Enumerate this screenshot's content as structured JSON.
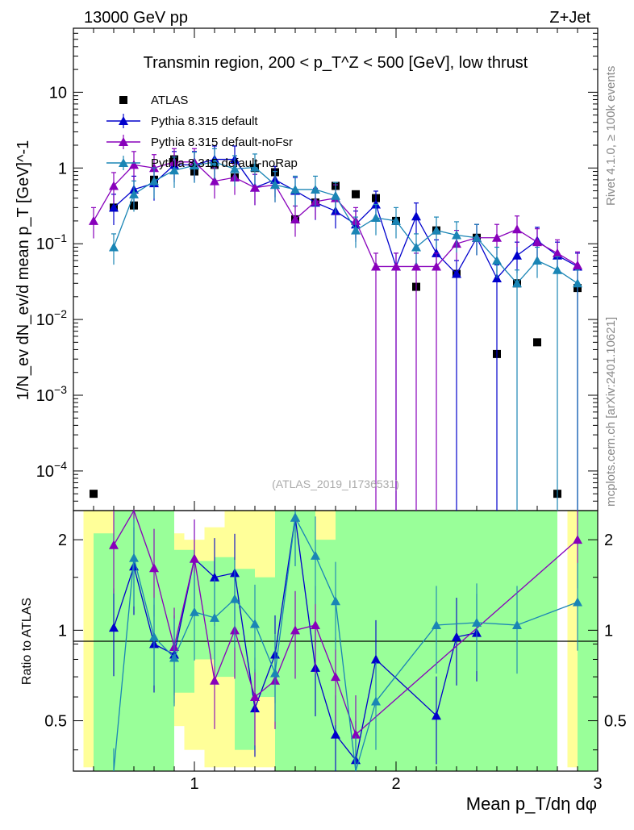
{
  "header": {
    "left": "13000 GeV pp",
    "right": "Z+Jet"
  },
  "side": {
    "rivet": "Rivet 4.1.0, ≥ 100k events",
    "mcplots": "mcplots.cern.ch [arXiv:2401.10621]"
  },
  "chart_data": {
    "type": "scatter",
    "title": "Transmin region, 200 < p_T^Z < 500 [GeV], low thrust",
    "xlabel": "Mean p_T/dη dφ",
    "ylabel": "1/N_ev dN_ev/d mean p_T [GeV]^-1",
    "ratio_ylabel": "Ratio to ATLAS",
    "watermark": "(ATLAS_2019_I1736531)",
    "xlim": [
      0.4,
      3.0
    ],
    "ylim": [
      3e-05,
      70
    ],
    "yscale": "log",
    "ratio_ylim": [
      0.34,
      2.5
    ],
    "x_ticks": [
      "1",
      "2",
      "3"
    ],
    "y_ticks": [
      "10^-4",
      "10^-3",
      "10^-2",
      "10^-1",
      "1",
      "10"
    ],
    "ratio_ticks": [
      "0.5",
      "1",
      "2"
    ],
    "legend_position": "top-left",
    "series": [
      {
        "name": "ATLAS",
        "color": "#000000",
        "marker": "square",
        "x": [
          0.5,
          0.6,
          0.7,
          0.8,
          0.9,
          1.0,
          1.1,
          1.2,
          1.3,
          1.4,
          1.5,
          1.6,
          1.7,
          1.8,
          1.9,
          2.0,
          2.1,
          2.2,
          2.3,
          2.4,
          2.5,
          2.6,
          2.7,
          2.8,
          2.9
        ],
        "y": [
          5e-05,
          0.3,
          0.32,
          0.7,
          1.3,
          0.9,
          1.1,
          0.75,
          1.0,
          0.88,
          0.21,
          0.35,
          0.58,
          0.45,
          0.4,
          0.2,
          0.027,
          0.15,
          0.04,
          0.12,
          0.0035,
          0.03,
          0.005,
          5e-05,
          0.026
        ]
      },
      {
        "name": "Pythia 8.315 default",
        "color": "#0000cc",
        "marker": "triangle",
        "x": [
          0.6,
          0.7,
          0.8,
          0.9,
          1.0,
          1.1,
          1.2,
          1.3,
          1.4,
          1.5,
          1.6,
          1.7,
          1.8,
          1.9,
          2.0,
          2.1,
          2.2,
          2.3,
          2.4,
          2.5,
          2.6,
          2.7,
          2.8,
          2.9
        ],
        "y": [
          0.3,
          0.52,
          0.63,
          1.1,
          1.1,
          1.3,
          1.3,
          0.55,
          0.7,
          0.5,
          0.35,
          0.27,
          0.18,
          0.33,
          0.05,
          0.23,
          0.075,
          0.04,
          0.12,
          0.035,
          0.07,
          0.11,
          0.07,
          0.05
        ]
      },
      {
        "name": "Pythia 8.315 default-noFsr",
        "color": "#8800bb",
        "marker": "triangle",
        "x": [
          0.5,
          0.6,
          0.7,
          0.8,
          0.9,
          1.0,
          1.1,
          1.2,
          1.3,
          1.4,
          1.5,
          1.6,
          1.7,
          1.8,
          1.9,
          2.0,
          2.1,
          2.2,
          2.3,
          2.4,
          2.5,
          2.6,
          2.7,
          2.8,
          2.9
        ],
        "y": [
          0.2,
          0.58,
          1.1,
          1.0,
          1.2,
          1.2,
          0.67,
          0.75,
          0.55,
          0.6,
          0.21,
          0.36,
          0.4,
          0.2,
          0.05,
          0.05,
          0.05,
          0.05,
          0.1,
          0.12,
          0.12,
          0.155,
          0.105,
          0.075,
          0.052
        ]
      },
      {
        "name": "Pythia 8.315 default-noRap",
        "color": "#1a85b5",
        "marker": "triangle",
        "x": [
          0.6,
          0.7,
          0.8,
          0.9,
          1.0,
          1.1,
          1.2,
          1.3,
          1.4,
          1.5,
          1.6,
          1.7,
          1.8,
          1.9,
          2.0,
          2.1,
          2.2,
          2.3,
          2.4,
          2.5,
          2.6,
          2.7,
          2.8,
          2.9
        ],
        "y": [
          0.09,
          0.45,
          0.67,
          0.93,
          1.08,
          1.2,
          0.97,
          1.02,
          0.6,
          0.52,
          0.52,
          0.43,
          0.15,
          0.22,
          0.2,
          0.09,
          0.15,
          0.13,
          0.12,
          0.06,
          0.03,
          0.06,
          0.045,
          0.03
        ]
      }
    ],
    "ratio_series": [
      {
        "name": "Pythia 8.315 default",
        "color": "#0000cc",
        "x": [
          0.6,
          0.7,
          0.8,
          0.9,
          1.0,
          1.1,
          1.2,
          1.3,
          1.4,
          1.5,
          1.6,
          1.7,
          1.8,
          1.9,
          2.2,
          2.3,
          2.4
        ],
        "y": [
          1.02,
          1.63,
          0.9,
          0.83,
          1.73,
          1.5,
          1.55,
          0.55,
          0.83,
          2.37,
          0.75,
          0.45,
          0.37,
          0.8,
          0.52,
          0.95,
          0.98
        ]
      },
      {
        "name": "Pythia 8.315 default-noFsr",
        "color": "#8800bb",
        "x": [
          0.6,
          0.7,
          0.8,
          0.9,
          1.0,
          1.1,
          1.2,
          1.3,
          1.4,
          1.5,
          1.6,
          1.7,
          1.8,
          2.9
        ],
        "y": [
          1.92,
          2.6,
          1.61,
          0.88,
          1.73,
          0.68,
          1.0,
          0.6,
          0.68,
          1.0,
          1.04,
          0.7,
          0.45,
          2.0
        ]
      },
      {
        "name": "Pythia 8.315 default-noRap",
        "color": "#1a85b5",
        "x": [
          0.6,
          0.7,
          0.8,
          0.9,
          1.0,
          1.1,
          1.2,
          1.3,
          1.4,
          1.5,
          1.6,
          1.7,
          1.8,
          1.9,
          2.2,
          2.4,
          2.6,
          2.9
        ],
        "y": [
          0.3,
          1.74,
          0.95,
          0.81,
          1.15,
          1.1,
          1.27,
          1.05,
          0.72,
          2.37,
          1.77,
          1.25,
          0.33,
          0.58,
          1.04,
          1.06,
          1.04,
          1.24
        ]
      }
    ]
  }
}
